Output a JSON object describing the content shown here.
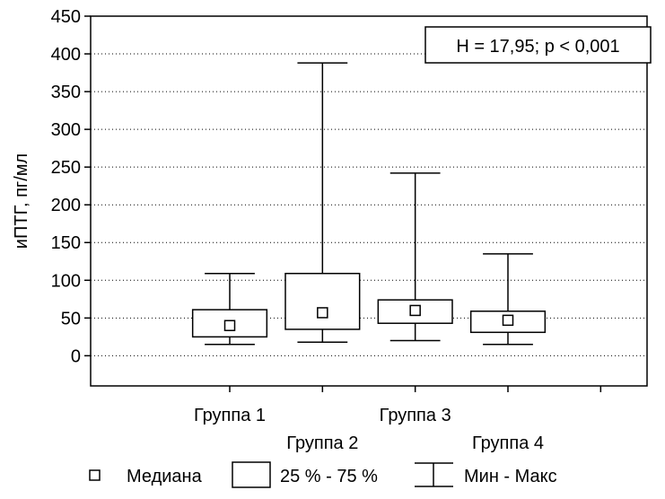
{
  "chart_data": {
    "type": "boxplot",
    "ylabel": "иПТГ, пг/мл",
    "ylim": [
      -40,
      450
    ],
    "yticks": [
      0,
      50,
      100,
      150,
      200,
      250,
      300,
      350,
      400,
      450
    ],
    "ytick_labels": [
      "0",
      "50",
      "100",
      "150",
      "200",
      "250",
      "300",
      "350",
      "400",
      "450"
    ],
    "grid": true,
    "categories": [
      "Группа 1",
      "Группа 2",
      "Группа 3",
      "Группа 4"
    ],
    "series": [
      {
        "category": "Группа 1",
        "min": 15,
        "q1": 25,
        "median": 40,
        "q3": 61,
        "max": 109
      },
      {
        "category": "Группа 2",
        "min": 18,
        "q1": 35,
        "median": 57,
        "q3": 109,
        "max": 388
      },
      {
        "category": "Группа 3",
        "min": 20,
        "q1": 43,
        "median": 60,
        "q3": 74,
        "max": 242
      },
      {
        "category": "Группа 4",
        "min": 15,
        "q1": 31,
        "median": 47,
        "q3": 59,
        "max": 135
      }
    ],
    "annotation": "H = 17,95; p < 0,001",
    "legend": {
      "placement": "bottom",
      "median_label": "Медиана",
      "box_label": "25 % - 75 %",
      "whisker_label": "Мин - Макс"
    }
  }
}
